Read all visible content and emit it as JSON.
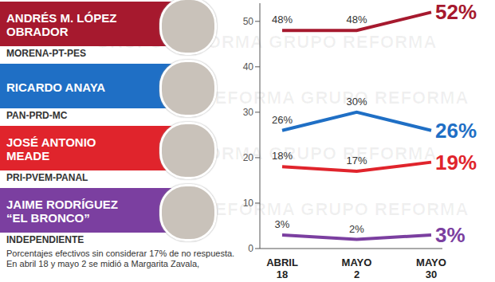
{
  "chart_data": {
    "type": "line",
    "categories": [
      "ABRIL 18",
      "MAYO 2",
      "MAYO 30"
    ],
    "series": [
      {
        "name": "ANDRÉS M. LÓPEZ OBRADOR",
        "party": "MORENA-PT-PES",
        "color": "#a6192e",
        "values": [
          48,
          48,
          52
        ],
        "value_labels": [
          "48%",
          "48%",
          "52%"
        ]
      },
      {
        "name": "RICARDO ANAYA",
        "party": "PAN-PRD-MC",
        "color": "#1f6fc5",
        "values": [
          26,
          30,
          26
        ],
        "value_labels": [
          "26%",
          "30%",
          "26%"
        ]
      },
      {
        "name": "JOSÉ ANTONIO MEADE",
        "party": "PRI-PVEM-PANAL",
        "color": "#e0242c",
        "values": [
          18,
          17,
          19
        ],
        "value_labels": [
          "18%",
          "17%",
          "19%"
        ]
      },
      {
        "name": "JAIME RODRÍGUEZ “EL BRONCO”",
        "party": "INDEPENDIENTE",
        "color": "#7b3fa0",
        "values": [
          3,
          2,
          3
        ],
        "value_labels": [
          "3%",
          "2%",
          "3%"
        ]
      }
    ],
    "ylim": [
      0,
      54
    ],
    "yticks": [
      0,
      10,
      20,
      30,
      40,
      50
    ],
    "grid": false,
    "data_labels": true,
    "marker": "none",
    "footnote": "Porcentajes efectivos sin considerar 17% de no respuesta. En abril 18 y mayo 2 se midió a Margarita Zavala,",
    "watermark": "GRUPO REFORMA"
  }
}
